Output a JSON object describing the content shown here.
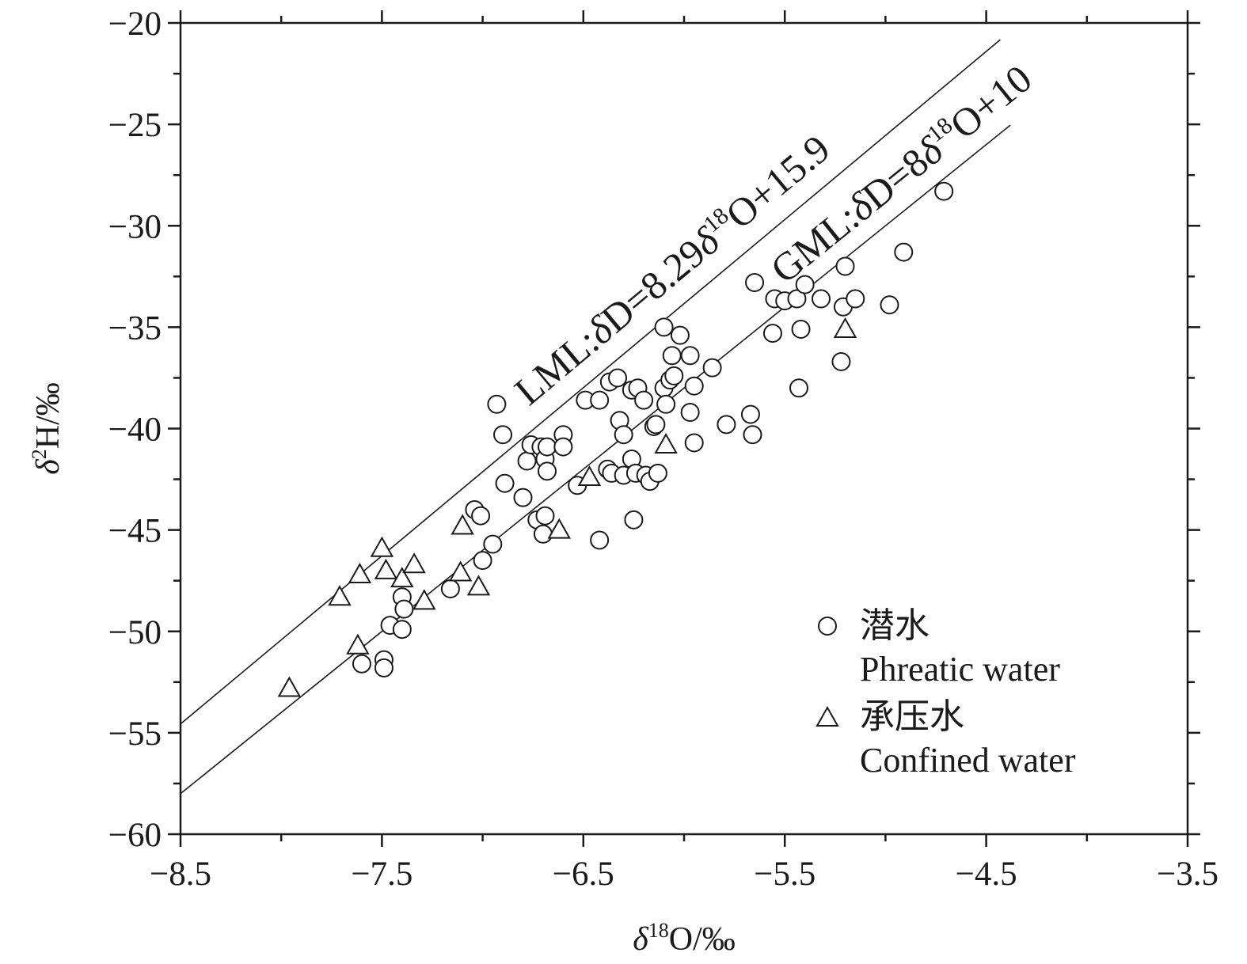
{
  "chart_data": {
    "type": "scatter",
    "xlabel": {
      "greek": "δ",
      "sup": "18",
      "rest": "O/‰"
    },
    "ylabel": {
      "greek": "δ",
      "sup": "2",
      "rest": "H/‰"
    },
    "xlim": [
      -8.5,
      -3.5
    ],
    "ylim": [
      -60,
      -20
    ],
    "x_ticks": [
      -8.5,
      -7.5,
      -6.5,
      -5.5,
      -4.5,
      -3.5
    ],
    "x_tick_labels": [
      "−8.5",
      "−7.5",
      "−6.5",
      "−5.5",
      "−4.5",
      "−3.5"
    ],
    "y_ticks": [
      -20,
      -25,
      -30,
      -35,
      -40,
      -45,
      -50,
      -55,
      -60
    ],
    "y_tick_labels": [
      "−20",
      "−25",
      "−30",
      "−35",
      "−40",
      "−45",
      "−50",
      "−55",
      "−60"
    ],
    "grid": false,
    "legend_position": "bottom-right",
    "lines": [
      {
        "name": "LML",
        "slope": 8.29,
        "intercept": 15.9,
        "x_range": [
          -8.5,
          -4.43
        ],
        "label": {
          "pre": "LML:",
          "d1": "δ",
          "mid": "D=8.29",
          "d2": "δ",
          "sup": "18",
          "post": "O+15.9"
        }
      },
      {
        "name": "GML",
        "slope": 8,
        "intercept": 10,
        "x_range": [
          -8.5,
          -4.38
        ],
        "label": {
          "pre": "GML:",
          "d1": "δ",
          "mid": "D=8",
          "d2": "δ",
          "sup": "18",
          "post": "O+10"
        }
      }
    ],
    "series": [
      {
        "name": "潜水 Phreatic water",
        "legend_cn": "潜水",
        "legend_en": "Phreatic water",
        "marker": "circle",
        "points": [
          [
            -6.93,
            -38.8
          ],
          [
            -6.9,
            -40.3
          ],
          [
            -6.89,
            -42.7
          ],
          [
            -6.8,
            -43.4
          ],
          [
            -6.78,
            -41.6
          ],
          [
            -6.76,
            -40.8
          ],
          [
            -6.73,
            -44.5
          ],
          [
            -6.71,
            -40.9
          ],
          [
            -6.69,
            -41.5
          ],
          [
            -6.68,
            -40.9
          ],
          [
            -6.68,
            -42.1
          ],
          [
            -6.7,
            -45.2
          ],
          [
            -6.69,
            -44.3
          ],
          [
            -6.6,
            -40.3
          ],
          [
            -6.6,
            -40.9
          ],
          [
            -6.53,
            -42.8
          ],
          [
            -6.49,
            -38.6
          ],
          [
            -6.42,
            -38.6
          ],
          [
            -6.42,
            -45.5
          ],
          [
            -6.38,
            -42.0
          ],
          [
            -6.37,
            -37.7
          ],
          [
            -6.36,
            -42.2
          ],
          [
            -6.33,
            -37.5
          ],
          [
            -6.32,
            -39.6
          ],
          [
            -6.3,
            -40.3
          ],
          [
            -6.3,
            -42.3
          ],
          [
            -6.26,
            -38.1
          ],
          [
            -6.26,
            -41.5
          ],
          [
            -6.25,
            -44.5
          ],
          [
            -6.24,
            -42.2
          ],
          [
            -6.23,
            -38.0
          ],
          [
            -6.2,
            -38.6
          ],
          [
            -6.19,
            -42.3
          ],
          [
            -6.17,
            -42.6
          ],
          [
            -6.15,
            -39.9
          ],
          [
            -6.14,
            -39.8
          ],
          [
            -6.13,
            -42.2
          ],
          [
            -6.1,
            -35.0
          ],
          [
            -6.1,
            -38.0
          ],
          [
            -6.09,
            -38.8
          ],
          [
            -6.07,
            -37.6
          ],
          [
            -6.06,
            -36.4
          ],
          [
            -6.05,
            -37.4
          ],
          [
            -6.02,
            -35.4
          ],
          [
            -5.97,
            -36.4
          ],
          [
            -5.97,
            -39.2
          ],
          [
            -5.95,
            -37.9
          ],
          [
            -5.95,
            -40.7
          ],
          [
            -5.86,
            -37.0
          ],
          [
            -5.79,
            -39.8
          ],
          [
            -5.67,
            -39.3
          ],
          [
            -5.66,
            -40.3
          ],
          [
            -5.65,
            -32.8
          ],
          [
            -5.56,
            -35.3
          ],
          [
            -5.55,
            -33.6
          ],
          [
            -5.5,
            -33.7
          ],
          [
            -5.44,
            -33.6
          ],
          [
            -5.43,
            -38.0
          ],
          [
            -5.42,
            -35.1
          ],
          [
            -5.4,
            -32.9
          ],
          [
            -5.32,
            -33.6
          ],
          [
            -5.22,
            -36.7
          ],
          [
            -5.21,
            -34.0
          ],
          [
            -5.2,
            -32.0
          ],
          [
            -5.15,
            -33.6
          ],
          [
            -4.98,
            -33.9
          ],
          [
            -4.91,
            -31.3
          ],
          [
            -4.71,
            -28.3
          ],
          [
            -7.04,
            -44.0
          ],
          [
            -7.01,
            -44.3
          ],
          [
            -6.95,
            -45.7
          ],
          [
            -7.0,
            -46.5
          ],
          [
            -7.16,
            -47.9
          ],
          [
            -7.4,
            -48.3
          ],
          [
            -7.39,
            -48.9
          ],
          [
            -7.46,
            -49.7
          ],
          [
            -7.4,
            -49.9
          ],
          [
            -7.49,
            -51.4
          ],
          [
            -7.6,
            -51.6
          ],
          [
            -7.49,
            -51.8
          ]
        ]
      },
      {
        "name": "承压水 Confined water",
        "legend_cn": "承压水",
        "legend_en": "Confined water",
        "marker": "triangle",
        "points": [
          [
            -7.96,
            -52.8
          ],
          [
            -7.71,
            -48.3
          ],
          [
            -7.61,
            -47.2
          ],
          [
            -7.62,
            -50.7
          ],
          [
            -7.5,
            -45.9
          ],
          [
            -7.48,
            -47.0
          ],
          [
            -7.4,
            -47.4
          ],
          [
            -7.34,
            -46.7
          ],
          [
            -7.29,
            -48.5
          ],
          [
            -7.11,
            -47.1
          ],
          [
            -7.1,
            -44.8
          ],
          [
            -7.02,
            -47.8
          ],
          [
            -6.62,
            -45.0
          ],
          [
            -6.47,
            -42.4
          ],
          [
            -6.09,
            -40.8
          ],
          [
            -5.2,
            -35.1
          ]
        ]
      }
    ]
  }
}
